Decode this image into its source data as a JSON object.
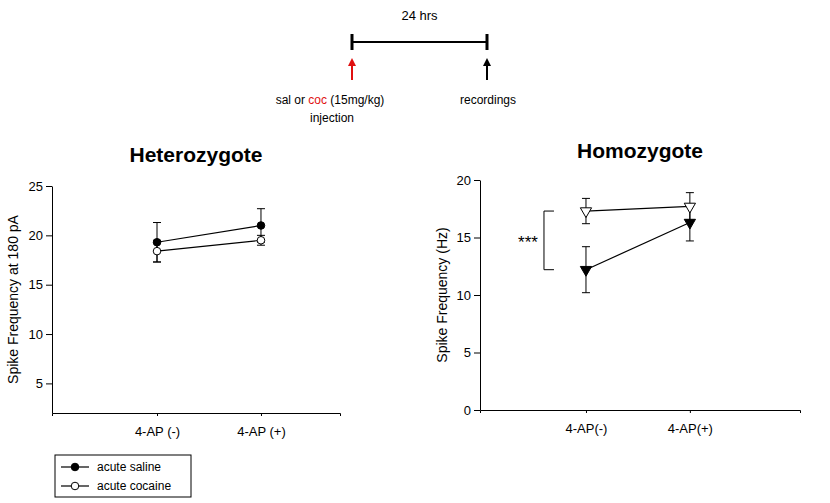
{
  "chart_data": [
    {
      "type": "line",
      "title": "Heterozygote",
      "y_label": "Spike Frequency at 180 pA",
      "categories": [
        "4-AP (-)",
        "4-AP (+)"
      ],
      "ylim": [
        2,
        25
      ],
      "yticks": [
        5,
        10,
        15,
        20,
        25
      ],
      "series": [
        {
          "name": "acute saline",
          "color": "#000000",
          "marker": "filled-circle",
          "values": [
            19.3,
            21.0
          ],
          "errors": [
            2.0,
            1.7
          ]
        },
        {
          "name": "acute cocaine",
          "color": "#000000",
          "marker": "open-circle",
          "values": [
            18.4,
            19.5
          ],
          "errors": [
            1.1,
            0.5
          ]
        }
      ]
    },
    {
      "type": "line",
      "title": "Homozygote",
      "y_label": "Spike Frequency (Hz)",
      "categories": [
        "4-AP(-)",
        "4-AP(+)"
      ],
      "ylim": [
        0,
        20
      ],
      "yticks": [
        0,
        5,
        10,
        15,
        20
      ],
      "annotations": [
        {
          "text": "***"
        }
      ],
      "series": [
        {
          "color": "#000000",
          "marker": "filled-triangle-down",
          "values": [
            12.2,
            16.3
          ],
          "errors": [
            2.0,
            1.6
          ]
        },
        {
          "color": "#000000",
          "marker": "open-triangle-down",
          "values": [
            17.3,
            17.7
          ],
          "errors": [
            1.1,
            1.2
          ]
        }
      ]
    }
  ],
  "timeline": {
    "interval": "24 hrs",
    "injection_label": [
      "sal or ",
      "coc",
      " (15mg/kg)"
    ],
    "injection_word": "injection",
    "recording_label": "recordings"
  }
}
